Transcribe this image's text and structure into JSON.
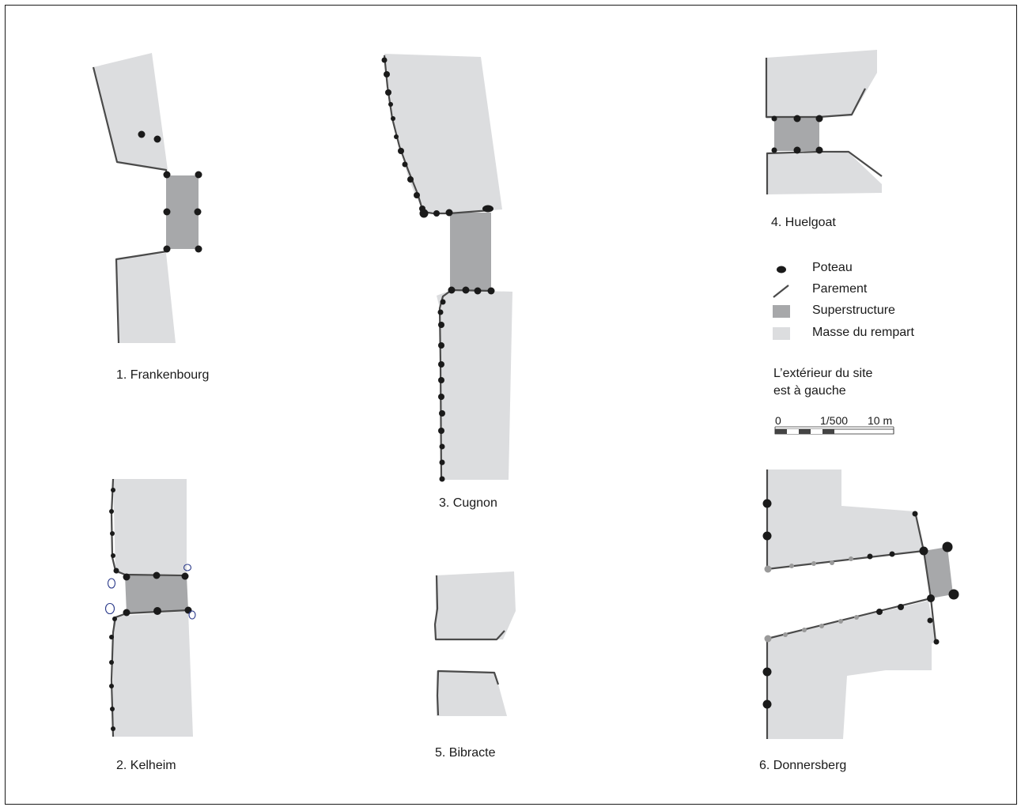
{
  "colors": {
    "rampart_mass": "#dcdddf",
    "superstructure": "#a7a8aa",
    "facing": "#4a4a4a",
    "post": "#1a1a1a",
    "post_grey": "#9a9a9a",
    "post_outline_blue": "#2b3a8a"
  },
  "sites": [
    {
      "id": "frankenbourg",
      "label": "1. Frankenbourg"
    },
    {
      "id": "kelheim",
      "label": "2. Kelheim"
    },
    {
      "id": "cugnon",
      "label": "3. Cugnon"
    },
    {
      "id": "huelgoat",
      "label": "4. Huelgoat"
    },
    {
      "id": "bibracte",
      "label": "5. Bibracte"
    },
    {
      "id": "donnersberg",
      "label": "6. Donnersberg"
    }
  ],
  "legend": {
    "items": [
      {
        "symbol": "post-icon",
        "label": "Poteau"
      },
      {
        "symbol": "facing-icon",
        "label": "Parement"
      },
      {
        "symbol": "superstructure-swatch",
        "label": "Superstructure"
      },
      {
        "symbol": "rampart-swatch",
        "label": "Masse du rempart"
      }
    ],
    "note_line1": "L’extérieur du site",
    "note_line2": "est à gauche"
  },
  "scale": {
    "zero": "0",
    "ratio": "1/500",
    "length": "10 m"
  }
}
